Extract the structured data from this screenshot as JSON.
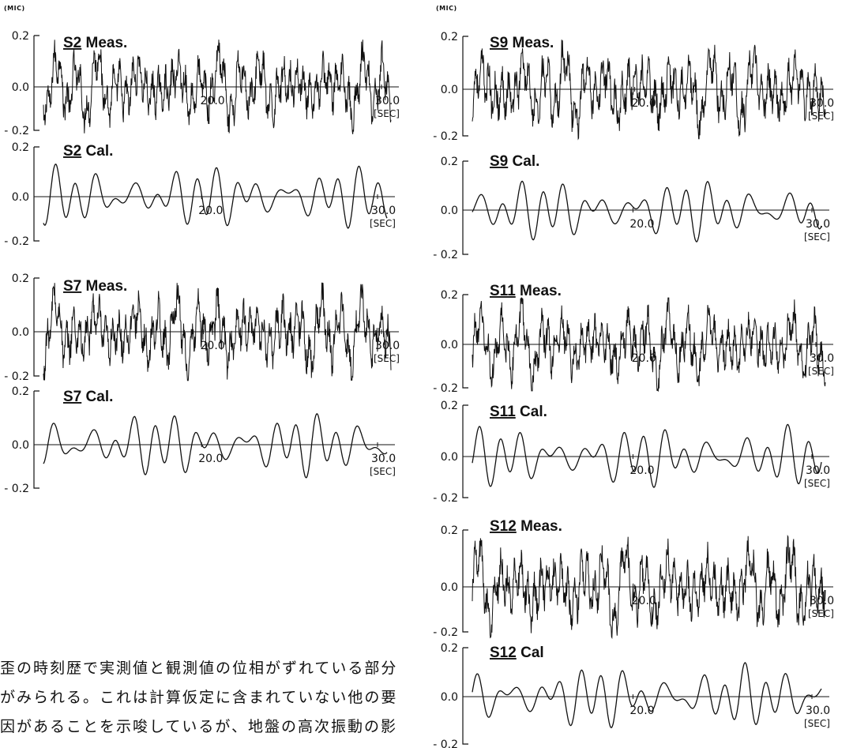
{
  "unit_left": "(MIC)",
  "unit_right": "(MIC)",
  "chart_data": [
    {
      "type": "line",
      "title": "S2 Meas.",
      "station": "S2",
      "kind": "Meas.",
      "ytick_labels": [
        "0.2",
        "0.0",
        "- 0.2"
      ],
      "ylim": [
        -0.2,
        0.2
      ],
      "xlim": [
        10.0,
        30.0
      ],
      "xtick_labels": [
        "20.0",
        "30.0"
      ],
      "xunit": "[SEC]"
    },
    {
      "type": "line",
      "title": "S2 Cal.",
      "station": "S2",
      "kind": "Cal.",
      "ytick_labels": [
        "0.2",
        "0.0",
        "- 0.2"
      ],
      "ylim": [
        -0.2,
        0.2
      ],
      "xlim": [
        10.0,
        30.0
      ],
      "xtick_labels": [
        "20.0",
        "30.0"
      ],
      "xunit": "[SEC]"
    },
    {
      "type": "line",
      "title": "S7 Meas.",
      "station": "S7",
      "kind": "Meas.",
      "ytick_labels": [
        "0.2",
        "0.0",
        "- 0.2"
      ],
      "ylim": [
        -0.2,
        0.2
      ],
      "xlim": [
        10.0,
        30.0
      ],
      "xtick_labels": [
        "20.0",
        "30.0"
      ],
      "xunit": "[SEC]"
    },
    {
      "type": "line",
      "title": "S7 Cal.",
      "station": "S7",
      "kind": "Cal.",
      "ytick_labels": [
        "0.2",
        "0.0",
        "- 0.2"
      ],
      "ylim": [
        -0.2,
        0.2
      ],
      "xlim": [
        10.0,
        30.0
      ],
      "xtick_labels": [
        "20.0",
        "30.0"
      ],
      "xunit": "[SEC]"
    },
    {
      "type": "line",
      "title": "S9 Meas.",
      "station": "S9",
      "kind": "Meas.",
      "ytick_labels": [
        "0.2",
        "0.0",
        "- 0.2"
      ],
      "ylim": [
        -0.2,
        0.2
      ],
      "xlim": [
        10.0,
        30.0
      ],
      "xtick_labels": [
        "20.0",
        "30.0"
      ],
      "xunit": "[SEC]"
    },
    {
      "type": "line",
      "title": "S9 Cal.",
      "station": "S9",
      "kind": "Cal.",
      "ytick_labels": [
        "0.2",
        "0.0",
        "- 0.2"
      ],
      "ylim": [
        -0.2,
        0.2
      ],
      "xlim": [
        10.0,
        30.0
      ],
      "xtick_labels": [
        "20.0",
        "30.0"
      ],
      "xunit": "[SEC]"
    },
    {
      "type": "line",
      "title": "S11 Meas.",
      "station": "S11",
      "kind": "Meas.",
      "ytick_labels": [
        "0.2",
        "0.0",
        "- 0.2"
      ],
      "ylim": [
        -0.2,
        0.2
      ],
      "xlim": [
        10.0,
        30.0
      ],
      "xtick_labels": [
        "20.0",
        "30.0"
      ],
      "xunit": "[SEC]"
    },
    {
      "type": "line",
      "title": "S11 Cal.",
      "station": "S11",
      "kind": "Cal.",
      "ytick_labels": [
        "0.2",
        "0.0",
        "- 0.2"
      ],
      "ylim": [
        -0.2,
        0.2
      ],
      "xlim": [
        10.0,
        30.0
      ],
      "xtick_labels": [
        "20.0",
        "30.0"
      ],
      "xunit": "[SEC]"
    },
    {
      "type": "line",
      "title": "S12 Meas.",
      "station": "S12",
      "kind": "Meas.",
      "ytick_labels": [
        "0.2",
        "0.0",
        "- 0.2"
      ],
      "ylim": [
        -0.2,
        0.2
      ],
      "xlim": [
        10.0,
        30.0
      ],
      "xtick_labels": [
        "20.0",
        "30.0"
      ],
      "xunit": "[SEC]"
    },
    {
      "type": "line",
      "title": "S12 Cal",
      "station": "S12",
      "kind": "Cal",
      "ytick_labels": [
        "0.2",
        "0.0",
        "- 0.2"
      ],
      "ylim": [
        -0.2,
        0.2
      ],
      "xlim": [
        10.0,
        30.0
      ],
      "xtick_labels": [
        "20.0",
        "30.0"
      ],
      "xunit": "[SEC]"
    }
  ],
  "caption_lines": [
    "歪の時刻歴で実測値と観測値の位相がずれている部分",
    "がみられる。これは計算仮定に含まれていない他の要",
    "因があることを示唆しているが、地盤の高次振動の影"
  ]
}
